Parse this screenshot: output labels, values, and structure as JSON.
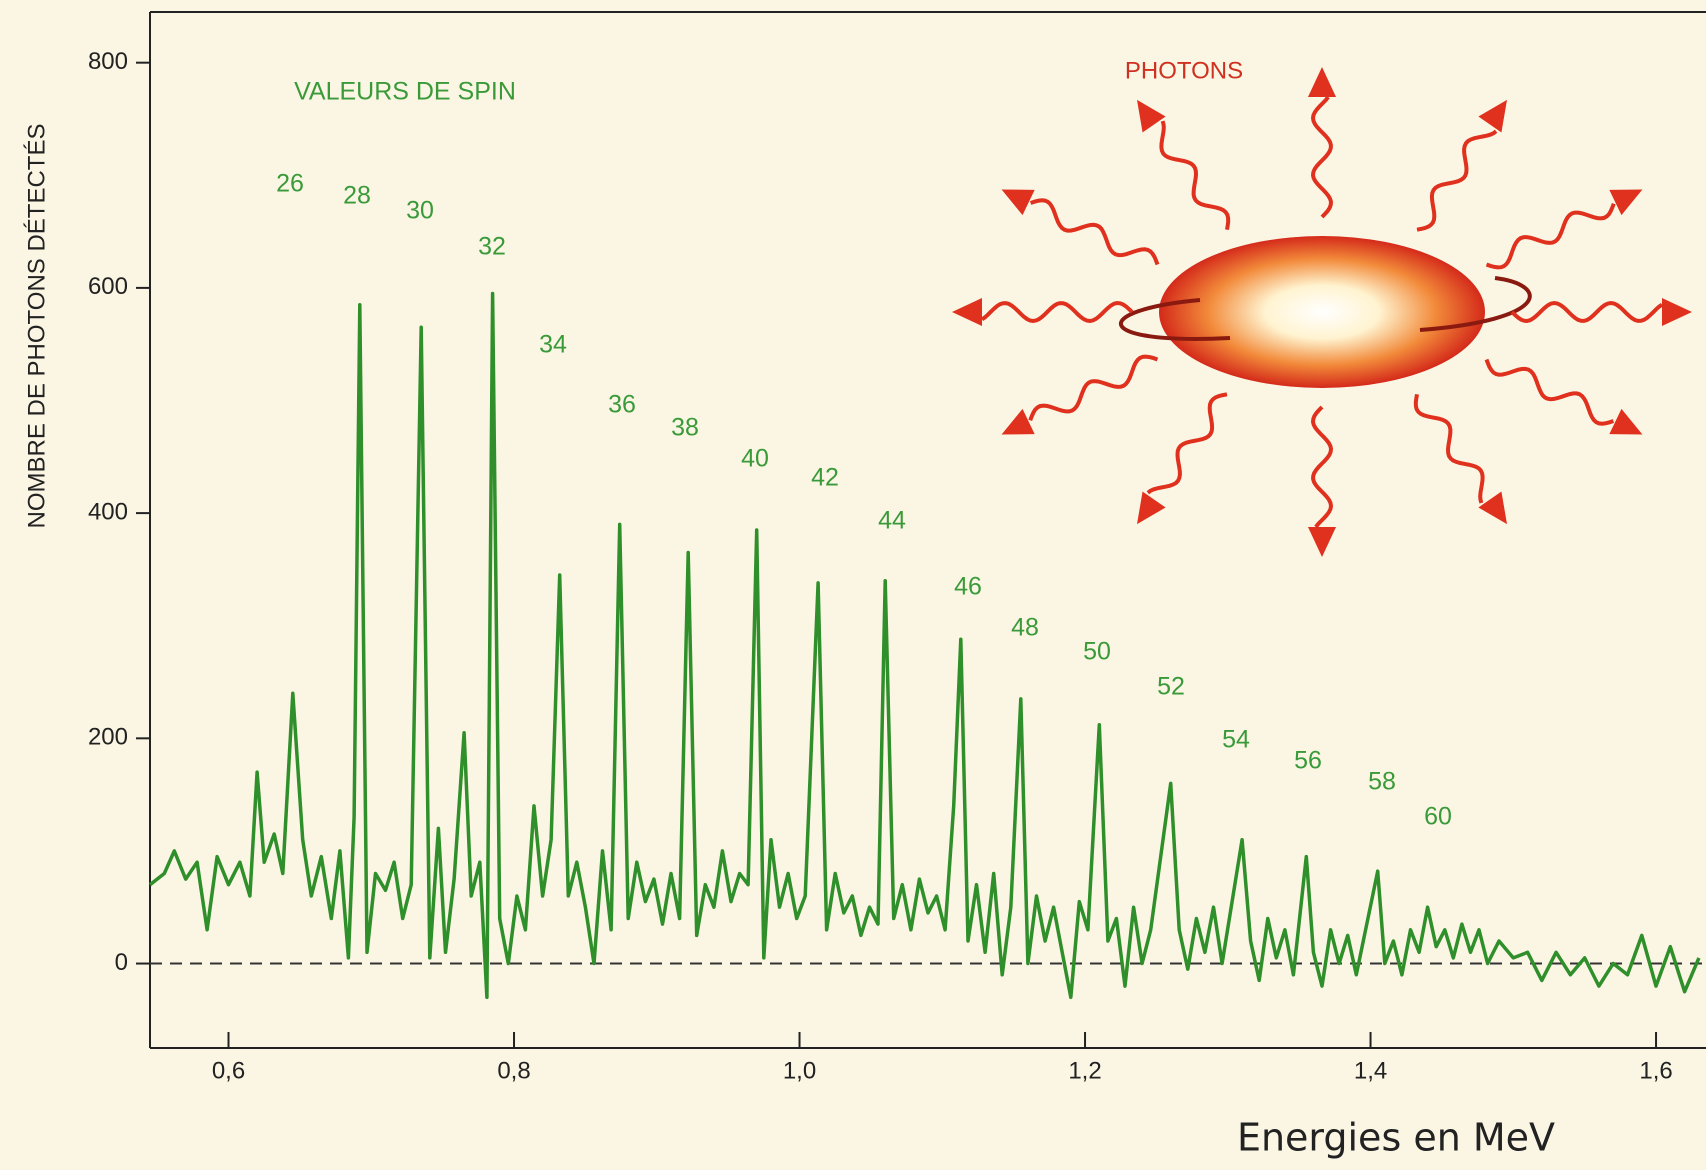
{
  "chart_data": {
    "type": "line",
    "y_label": "NOMBRE DE PHOTONS DÉTECTÉS",
    "x_label": "Energies en MeV",
    "annotation": "VALEURS DE SPIN",
    "illustration_label": "PHOTONS",
    "spin_labels": [
      "26",
      "28",
      "30",
      "32",
      "34",
      "36",
      "38",
      "40",
      "42",
      "44",
      "46",
      "48",
      "50",
      "52",
      "54",
      "56",
      "58",
      "60"
    ],
    "color": "#2f8f2a",
    "xlim": [
      0.545,
      1.635
    ],
    "ylim": [
      -75,
      845
    ],
    "xticks": [
      {
        "value": 0.6,
        "label": "0,6"
      },
      {
        "value": 0.8,
        "label": "0,8"
      },
      {
        "value": 1.0,
        "label": "1,0"
      },
      {
        "value": 1.2,
        "label": "1,2"
      },
      {
        "value": 1.4,
        "label": "1,4"
      },
      {
        "value": 1.6,
        "label": "1,6"
      }
    ],
    "yticks": [
      0,
      200,
      400,
      600,
      800
    ],
    "x": [
      0.545,
      0.555,
      0.562,
      0.57,
      0.578,
      0.585,
      0.592,
      0.6,
      0.608,
      0.615,
      0.62,
      0.625,
      0.632,
      0.638,
      0.645,
      0.652,
      0.658,
      0.665,
      0.672,
      0.678,
      0.684,
      0.688,
      0.692,
      0.697,
      0.703,
      0.71,
      0.716,
      0.722,
      0.728,
      0.735,
      0.741,
      0.747,
      0.752,
      0.758,
      0.765,
      0.77,
      0.776,
      0.781,
      0.785,
      0.79,
      0.796,
      0.802,
      0.808,
      0.814,
      0.82,
      0.826,
      0.832,
      0.838,
      0.844,
      0.85,
      0.856,
      0.862,
      0.868,
      0.874,
      0.88,
      0.886,
      0.892,
      0.898,
      0.904,
      0.91,
      0.916,
      0.922,
      0.928,
      0.934,
      0.94,
      0.946,
      0.952,
      0.958,
      0.964,
      0.97,
      0.975,
      0.98,
      0.986,
      0.992,
      0.998,
      1.004,
      1.013,
      1.019,
      1.025,
      1.031,
      1.037,
      1.043,
      1.049,
      1.055,
      1.06,
      1.066,
      1.072,
      1.078,
      1.084,
      1.09,
      1.096,
      1.102,
      1.108,
      1.113,
      1.118,
      1.124,
      1.13,
      1.136,
      1.142,
      1.148,
      1.155,
      1.16,
      1.166,
      1.172,
      1.178,
      1.184,
      1.19,
      1.196,
      1.202,
      1.21,
      1.216,
      1.222,
      1.228,
      1.234,
      1.24,
      1.246,
      1.26,
      1.266,
      1.272,
      1.278,
      1.284,
      1.29,
      1.296,
      1.31,
      1.316,
      1.322,
      1.328,
      1.334,
      1.34,
      1.346,
      1.355,
      1.36,
      1.366,
      1.372,
      1.378,
      1.384,
      1.39,
      1.405,
      1.41,
      1.416,
      1.422,
      1.428,
      1.434,
      1.44,
      1.446,
      1.452,
      1.458,
      1.464,
      1.47,
      1.476,
      1.482,
      1.49,
      1.5,
      1.51,
      1.52,
      1.53,
      1.54,
      1.55,
      1.56,
      1.57,
      1.58,
      1.59,
      1.6,
      1.61,
      1.62,
      1.63
    ],
    "values": [
      70,
      80,
      100,
      75,
      90,
      30,
      95,
      70,
      90,
      60,
      170,
      90,
      115,
      80,
      240,
      110,
      60,
      95,
      40,
      100,
      5,
      130,
      585,
      10,
      80,
      65,
      90,
      40,
      70,
      565,
      5,
      120,
      10,
      75,
      205,
      60,
      90,
      -30,
      595,
      40,
      0,
      60,
      30,
      140,
      60,
      110,
      345,
      60,
      90,
      50,
      0,
      100,
      30,
      390,
      40,
      90,
      55,
      75,
      35,
      80,
      40,
      365,
      25,
      70,
      50,
      100,
      55,
      80,
      70,
      385,
      5,
      110,
      50,
      80,
      40,
      60,
      338,
      30,
      80,
      45,
      60,
      25,
      50,
      35,
      340,
      40,
      70,
      30,
      75,
      45,
      60,
      30,
      140,
      288,
      20,
      70,
      10,
      80,
      -10,
      50,
      235,
      0,
      60,
      20,
      50,
      10,
      -30,
      55,
      30,
      212,
      20,
      40,
      -20,
      50,
      0,
      30,
      160,
      30,
      -5,
      40,
      10,
      50,
      0,
      110,
      20,
      -15,
      40,
      5,
      30,
      -10,
      95,
      10,
      -20,
      30,
      0,
      25,
      -10,
      82,
      0,
      20,
      -10,
      30,
      10,
      50,
      15,
      30,
      5,
      35,
      10,
      30,
      0,
      20,
      5,
      10,
      -15,
      10,
      -10,
      5,
      -20,
      0,
      -10,
      25,
      -20,
      15,
      -25,
      5
    ]
  }
}
